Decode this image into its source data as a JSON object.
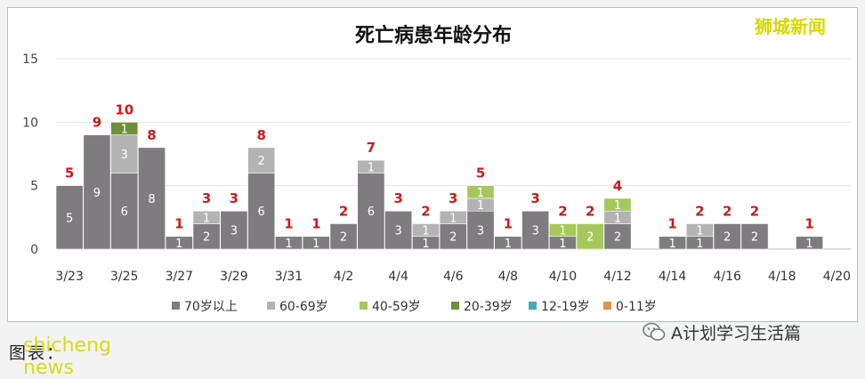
{
  "watermark": "狮城新闻",
  "footer": {
    "caption": "图表：",
    "caption_watermark": "shicheng news",
    "account_name": "A计划学习生活篇",
    "account_icon": "wechat-icon"
  },
  "chart_data": {
    "type": "bar",
    "stacked": true,
    "title": "死亡病患年龄分布",
    "xlabel": "",
    "ylabel": "",
    "ylim": [
      0,
      15
    ],
    "yticks": [
      0,
      5,
      10,
      15
    ],
    "grid": true,
    "legend_position": "bottom",
    "categories": [
      "3/23",
      "3/24",
      "3/25",
      "3/26",
      "3/27",
      "3/28",
      "3/29",
      "3/30",
      "3/31",
      "4/1",
      "4/2",
      "4/3",
      "4/4",
      "4/5",
      "4/6",
      "4/7",
      "4/8",
      "4/9",
      "4/10",
      "4/11",
      "4/12",
      "4/13",
      "4/14",
      "4/15",
      "4/16",
      "4/17",
      "4/18",
      "4/19",
      "4/20"
    ],
    "xtick_labels": [
      "3/23",
      "3/25",
      "3/27",
      "3/29",
      "3/31",
      "4/2",
      "4/4",
      "4/6",
      "4/8",
      "4/10",
      "4/12",
      "4/14",
      "4/16",
      "4/18",
      "4/20"
    ],
    "series": [
      {
        "name": "70岁以上",
        "color": "#7f7c80",
        "values": [
          5,
          9,
          6,
          8,
          1,
          2,
          3,
          6,
          1,
          1,
          2,
          6,
          3,
          1,
          2,
          3,
          1,
          3,
          1,
          0,
          2,
          0,
          1,
          1,
          2,
          2,
          0,
          1,
          0
        ]
      },
      {
        "name": "60-69岁",
        "color": "#b3b3b3",
        "values": [
          0,
          0,
          3,
          0,
          0,
          1,
          0,
          2,
          0,
          0,
          0,
          1,
          0,
          1,
          1,
          1,
          0,
          0,
          0,
          0,
          1,
          0,
          0,
          1,
          0,
          0,
          0,
          0,
          0
        ]
      },
      {
        "name": "40-59岁",
        "color": "#a5c85a",
        "values": [
          0,
          0,
          0,
          0,
          0,
          0,
          0,
          0,
          0,
          0,
          0,
          0,
          0,
          0,
          0,
          1,
          0,
          0,
          1,
          2,
          1,
          0,
          0,
          0,
          0,
          0,
          0,
          0,
          0
        ]
      },
      {
        "name": "20-39岁",
        "color": "#6f8f3a",
        "values": [
          0,
          0,
          1,
          0,
          0,
          0,
          0,
          0,
          0,
          0,
          0,
          0,
          0,
          0,
          0,
          0,
          0,
          0,
          0,
          0,
          0,
          0,
          0,
          0,
          0,
          0,
          0,
          0,
          0
        ]
      },
      {
        "name": "12-19岁",
        "color": "#4aa6c0",
        "values": [
          0,
          0,
          0,
          0,
          0,
          0,
          0,
          0,
          0,
          0,
          0,
          0,
          0,
          0,
          0,
          0,
          0,
          0,
          0,
          0,
          0,
          0,
          0,
          0,
          0,
          0,
          0,
          0,
          0
        ]
      },
      {
        "name": "0-11岁",
        "color": "#e2934c",
        "values": [
          0,
          0,
          0,
          0,
          0,
          0,
          0,
          0,
          0,
          0,
          0,
          0,
          0,
          0,
          0,
          0,
          0,
          0,
          0,
          0,
          0,
          0,
          0,
          0,
          0,
          0,
          0,
          0,
          0
        ]
      }
    ],
    "totals": [
      5,
      9,
      10,
      8,
      1,
      3,
      3,
      8,
      1,
      1,
      2,
      7,
      3,
      2,
      3,
      5,
      1,
      3,
      2,
      2,
      4,
      0,
      1,
      2,
      2,
      2,
      0,
      1,
      0
    ],
    "total_label_color": "#cc1b1b"
  }
}
